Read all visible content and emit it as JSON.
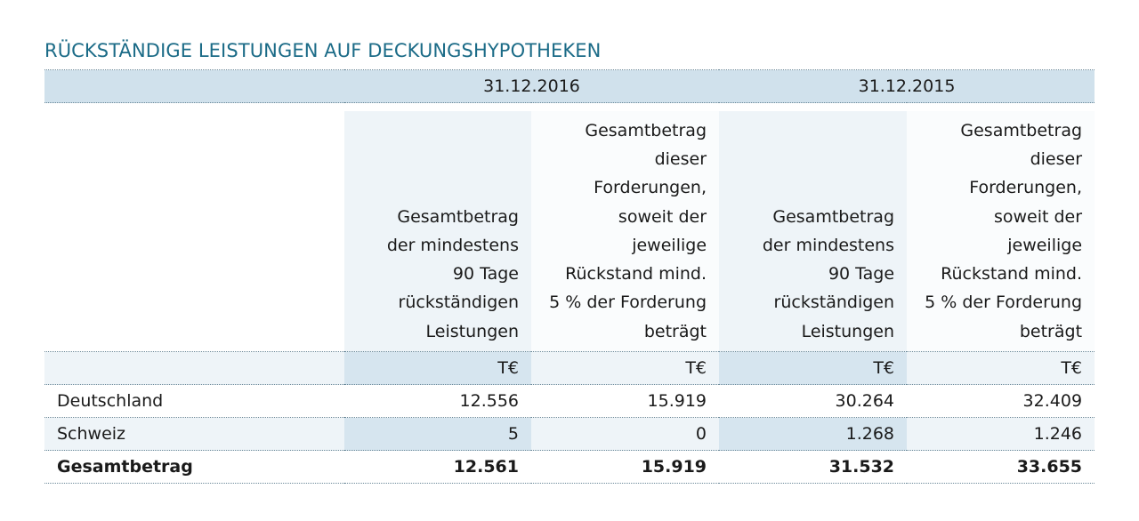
{
  "title": "RÜCKSTÄNDIGE LEISTUNGEN AUF DECKUNGSHYPOTHEKEN",
  "dates": [
    "31.12.2016",
    "31.12.2015"
  ],
  "column_headers": [
    [
      "Gesamtbetrag",
      "der mindestens",
      "90 Tage",
      "rückständigen",
      "Leistungen"
    ],
    [
      "Gesamtbetrag",
      "dieser",
      "Forderungen,",
      "soweit der",
      "jeweilige",
      "Rückstand mind.",
      "5 % der Forderung",
      "beträgt"
    ],
    [
      "Gesamtbetrag",
      "der mindestens",
      "90 Tage",
      "rückständigen",
      "Leistungen"
    ],
    [
      "Gesamtbetrag",
      "dieser",
      "Forderungen,",
      "soweit der",
      "jeweilige",
      "Rückstand mind.",
      "5 % der Forderung",
      "beträgt"
    ]
  ],
  "unit": "T€",
  "rows": [
    {
      "label": "Deutschland",
      "values": [
        "12.556",
        "15.919",
        "30.264",
        "32.409"
      ]
    },
    {
      "label": "Schweiz",
      "values": [
        "5",
        "0",
        "1.268",
        "1.246"
      ]
    },
    {
      "label": "Gesamtbetrag",
      "values": [
        "12.561",
        "15.919",
        "31.532",
        "33.655"
      ]
    }
  ]
}
